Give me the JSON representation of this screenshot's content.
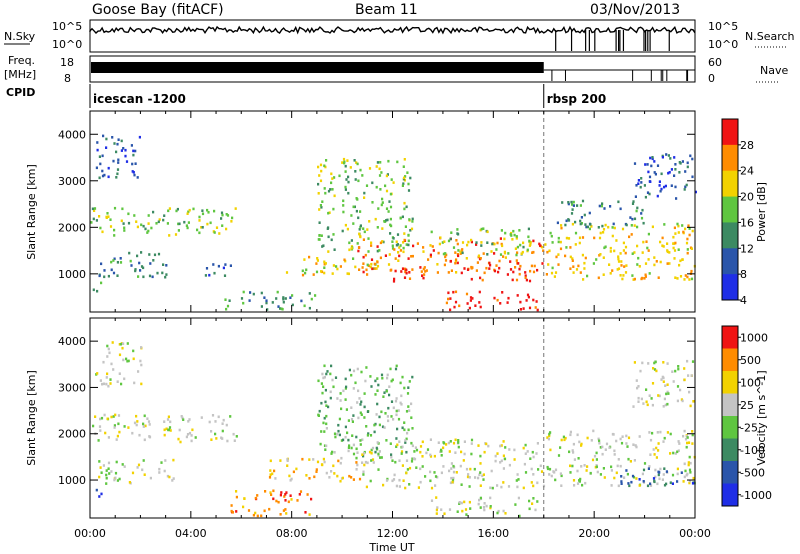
{
  "header": {
    "title": "Goose Bay (fitACF)",
    "beam": "Beam 11",
    "date": "03/Nov/2013"
  },
  "strips": {
    "nsky_label": "N.Sky",
    "nsky_ticks": [
      "10^5",
      "10^0"
    ],
    "nsearch_label": "N.Search",
    "nsearch_ticks": [
      "10^5",
      "10^0"
    ],
    "freq_label_1": "Freq.",
    "freq_label_2": "[MHz]",
    "freq_ticks": [
      "18",
      "8"
    ],
    "nave_label": "Nave",
    "nave_ticks": [
      "60",
      "0"
    ],
    "cpid_label": "CPID",
    "cpid_segments": [
      {
        "name": "icescan -1200",
        "start_hour": 0,
        "end_hour": 18
      },
      {
        "name": "rbsp 200",
        "start_hour": 18,
        "end_hour": 24
      }
    ]
  },
  "chart_data": [
    {
      "type": "heatmap",
      "title": "",
      "xlabel": "",
      "ylabel": "Slant Range [km]",
      "xlim": [
        0,
        24
      ],
      "ylim": [
        180,
        4500
      ],
      "y_ticks": [
        "1000",
        "2000",
        "3000",
        "4000"
      ],
      "colorbar_label": "Power [dB]",
      "colorbar_ticks": [
        "4",
        "8",
        "12",
        "16",
        "20",
        "24",
        "28"
      ],
      "colors": [
        "#1f2ee6",
        "#2a55aa",
        "#3c8a62",
        "#5fc640",
        "#f2d200",
        "#ff8c00",
        "#f01414"
      ],
      "scatter_regions": [
        {
          "hours": [
            0.2,
            2.0
          ],
          "range_km": [
            3050,
            4000
          ],
          "level": 1
        },
        {
          "hours": [
            0,
            5.8
          ],
          "range_km": [
            1850,
            2450
          ],
          "level": 3
        },
        {
          "hours": [
            0.3,
            3.3
          ],
          "range_km": [
            950,
            1500
          ],
          "level": 2
        },
        {
          "hours": [
            4.3,
            5.6
          ],
          "range_km": [
            950,
            1250
          ],
          "level": 1
        },
        {
          "hours": [
            0,
            0.6
          ],
          "range_km": [
            650,
            850
          ],
          "level": 3
        },
        {
          "hours": [
            5.3,
            8.9
          ],
          "range_km": [
            250,
            650
          ],
          "level": 2
        },
        {
          "hours": [
            7.5,
            11.5
          ],
          "range_km": [
            1000,
            1400
          ],
          "level": 4
        },
        {
          "hours": [
            9.0,
            12.8
          ],
          "range_km": [
            1500,
            3500
          ],
          "level": 3
        },
        {
          "hours": [
            10.5,
            18.0
          ],
          "range_km": [
            1050,
            1800
          ],
          "level": 5
        },
        {
          "hours": [
            12.0,
            17.5
          ],
          "range_km": [
            850,
            1150
          ],
          "level": 6
        },
        {
          "hours": [
            14.0,
            17.8
          ],
          "range_km": [
            250,
            650
          ],
          "level": 6
        },
        {
          "hours": [
            13.5,
            17.5
          ],
          "range_km": [
            1400,
            2000
          ],
          "level": 3
        },
        {
          "hours": [
            18.0,
            24.0
          ],
          "range_km": [
            900,
            2100
          ],
          "level": 4
        },
        {
          "hours": [
            18.5,
            22.0
          ],
          "range_km": [
            2000,
            2600
          ],
          "level": 2
        },
        {
          "hours": [
            21.5,
            24.0
          ],
          "range_km": [
            2600,
            3600
          ],
          "level": 1
        }
      ]
    },
    {
      "type": "heatmap",
      "title": "",
      "xlabel": "Time UT",
      "ylabel": "Slant Range [km]",
      "xlim": [
        0,
        24
      ],
      "ylim": [
        180,
        4500
      ],
      "x_ticks": [
        "00:00",
        "04:00",
        "08:00",
        "12:00",
        "16:00",
        "20:00",
        "00:00"
      ],
      "y_ticks": [
        "1000",
        "2000",
        "3000",
        "4000"
      ],
      "colorbar_label": "Velocity [m s^-1]",
      "colorbar_ticks": [
        "1000",
        "500",
        "100",
        "25",
        "-25",
        "-100",
        "-500",
        "-1000"
      ],
      "colors": [
        "#1f2ee6",
        "#2a55aa",
        "#3c8a62",
        "#5fc640",
        "#c4c4c4",
        "#f2d200",
        "#ff8c00",
        "#f01414"
      ],
      "scatter_regions": [
        {
          "hours": [
            0.2,
            2.0
          ],
          "range_km": [
            3050,
            4000
          ],
          "level": 4
        },
        {
          "hours": [
            0,
            5.8
          ],
          "range_km": [
            1850,
            2450
          ],
          "level": 4
        },
        {
          "hours": [
            0,
            0.6
          ],
          "range_km": [
            650,
            850
          ],
          "level": 0
        },
        {
          "hours": [
            0.3,
            3.3
          ],
          "range_km": [
            950,
            1500
          ],
          "level": 4
        },
        {
          "hours": [
            5.5,
            8.9
          ],
          "range_km": [
            250,
            800
          ],
          "level": 6
        },
        {
          "hours": [
            7.0,
            11.0
          ],
          "range_km": [
            1000,
            1500
          ],
          "level": 5
        },
        {
          "hours": [
            9.0,
            12.8
          ],
          "range_km": [
            1500,
            3500
          ],
          "level": 3
        },
        {
          "hours": [
            10.5,
            18.0
          ],
          "range_km": [
            850,
            1900
          ],
          "level": 4
        },
        {
          "hours": [
            13.5,
            17.8
          ],
          "range_km": [
            250,
            650
          ],
          "level": 4
        },
        {
          "hours": [
            18.0,
            24.0
          ],
          "range_km": [
            900,
            2100
          ],
          "level": 4
        },
        {
          "hours": [
            21.0,
            24.0
          ],
          "range_km": [
            900,
            1300
          ],
          "level": 1
        },
        {
          "hours": [
            21.5,
            24.0
          ],
          "range_km": [
            2600,
            3600
          ],
          "level": 4
        }
      ]
    }
  ]
}
